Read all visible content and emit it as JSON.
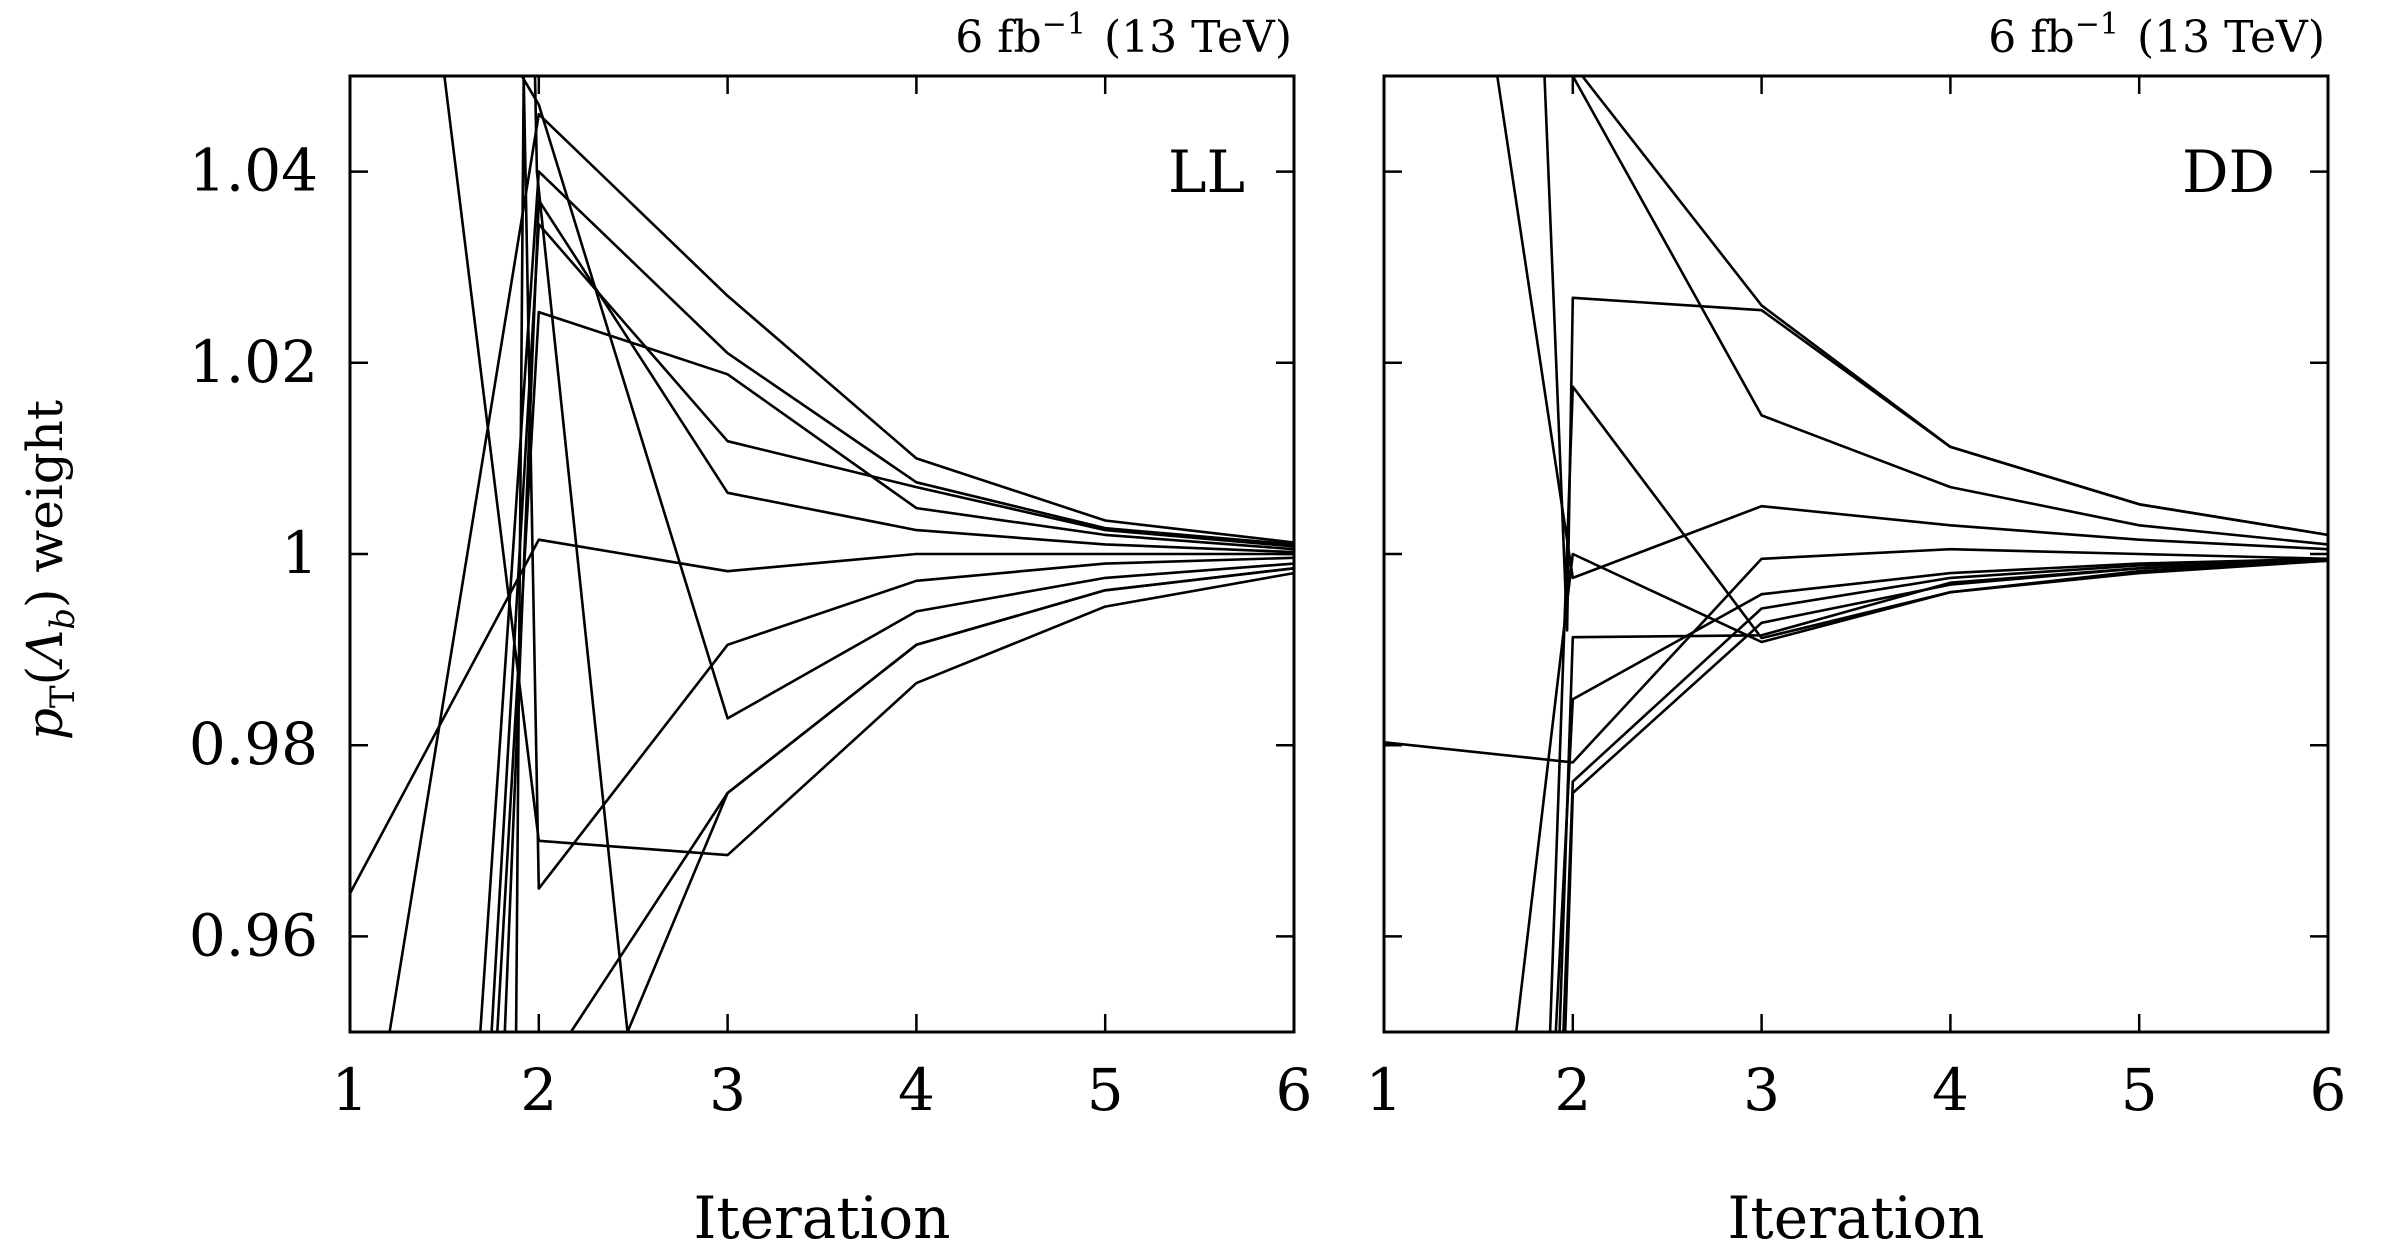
{
  "figure": {
    "ylabel_main": "p",
    "ylabel_sub": "T",
    "ylabel_rest_open": "(",
    "ylabel_symbol": "Λ",
    "ylabel_symbol_sub": "b",
    "ylabel_rest_close": ") weight"
  },
  "chart_data": [
    {
      "type": "line",
      "panel": "LL",
      "label": "LL",
      "lumi_base": "6 fb",
      "lumi_exp": "−1",
      "lumi_energy": "(13 TeV)",
      "xlabel": "Iteration",
      "ylabel": "pT(Λb) weight",
      "xlim": [
        1,
        6
      ],
      "ylim": [
        0.95,
        1.05
      ],
      "xticks": [
        1,
        2,
        3,
        4,
        5,
        6
      ],
      "yticks": [
        0.96,
        0.98,
        1.0,
        1.02,
        1.04
      ],
      "ytick_labels": [
        "0.96",
        "0.98",
        "1",
        "1.02",
        "1.04"
      ],
      "grid": false,
      "series": [
        {
          "x": [
            1,
            2,
            3,
            4,
            5,
            6
          ],
          "y": [
            0.9645,
            1.0015,
            0.9982,
            1.0,
            1.0,
            1.0
          ]
        },
        {
          "x": [
            1.5,
            2,
            3,
            4,
            5,
            6
          ],
          "y": [
            1.05,
            0.97,
            0.9685,
            0.9865,
            0.9945,
            0.998
          ]
        },
        {
          "x": [
            1.21,
            2,
            3,
            4,
            5,
            6
          ],
          "y": [
            0.95,
            1.046,
            1.027,
            1.01,
            1.0035,
            1.0012
          ]
        },
        {
          "x": [
            1.69,
            2,
            3,
            4,
            5,
            6
          ],
          "y": [
            0.95,
            1.04,
            1.021,
            1.0075,
            1.0027,
            1.001
          ]
        },
        {
          "x": [
            1.75,
            2,
            3,
            4,
            5,
            6
          ],
          "y": [
            0.95,
            1.0345,
            1.0118,
            1.007,
            1.0025,
            1.0008
          ]
        },
        {
          "x": [
            1.78,
            2,
            3,
            4,
            5,
            6
          ],
          "y": [
            0.95,
            1.0253,
            1.0188,
            1.0048,
            1.002,
            1.0005
          ]
        },
        {
          "x": [
            1.82,
            2,
            3,
            4,
            5,
            6
          ],
          "y": [
            0.95,
            1.037,
            1.0064,
            1.0025,
            1.001,
            1.0002
          ]
        },
        {
          "x": [
            1.88,
            1.92,
            2,
            3,
            4,
            5,
            6
          ],
          "y": [
            0.95,
            1.05,
            0.965,
            0.9905,
            0.9972,
            0.999,
            0.9996
          ]
        },
        {
          "x": [
            1.91,
            2,
            3,
            4,
            5,
            6
          ],
          "y": [
            1.05,
            1.047,
            0.9828,
            0.994,
            0.9975,
            0.999
          ]
        },
        {
          "x": [
            2.17,
            3,
            4,
            5,
            6
          ],
          "y": [
            0.95,
            0.975,
            0.9905,
            0.9962,
            0.9985
          ]
        },
        {
          "x": [
            1.98,
            1.99,
            2.47,
            3,
            4,
            5,
            6
          ],
          "y": [
            1.05,
            1.04,
            0.95,
            0.975,
            0.9905,
            0.9962,
            0.9985
          ]
        }
      ]
    },
    {
      "type": "line",
      "panel": "DD",
      "label": "DD",
      "lumi_base": "6 fb",
      "lumi_exp": "−1",
      "lumi_energy": "(13 TeV)",
      "xlabel": "Iteration",
      "ylabel": "pT(Λb) weight",
      "xlim": [
        1,
        6
      ],
      "ylim": [
        0.95,
        1.05
      ],
      "xticks": [
        1,
        2,
        3,
        4,
        5,
        6
      ],
      "yticks": [
        0.96,
        0.98,
        1.0,
        1.02,
        1.04
      ],
      "ytick_labels": [
        "0.96",
        "0.98",
        "1",
        "1.02",
        "1.04"
      ],
      "grid": false,
      "series": [
        {
          "x": [
            1,
            2,
            3,
            4,
            5,
            6
          ],
          "y": [
            0.9803,
            0.9782,
            0.9995,
            1.0005,
            1.0,
            0.9995
          ]
        },
        {
          "x": [
            1.6,
            2,
            3,
            4,
            5,
            6
          ],
          "y": [
            1.05,
            0.9975,
            1.005,
            1.003,
            1.0015,
            1.0005
          ]
        },
        {
          "x": [
            1.7,
            2,
            3,
            4,
            5,
            6
          ],
          "y": [
            0.95,
            1.0,
            0.9908,
            0.996,
            0.9982,
            0.9993
          ]
        },
        {
          "x": [
            1.85,
            1.97,
            2,
            3,
            4,
            5,
            6
          ],
          "y": [
            1.05,
            0.992,
            1.0268,
            1.0255,
            1.0112,
            1.0052,
            1.002
          ]
        },
        {
          "x": [
            1.88,
            2,
            3,
            4,
            5,
            6
          ],
          "y": [
            0.95,
            1.0175,
            0.9912,
            0.996,
            0.998,
            0.9993
          ]
        },
        {
          "x": [
            1.91,
            2,
            3,
            4,
            5,
            6
          ],
          "y": [
            0.95,
            0.9848,
            0.9958,
            0.998,
            0.999,
            0.9995
          ]
        },
        {
          "x": [
            1.93,
            2,
            3,
            4,
            5,
            6
          ],
          "y": [
            0.95,
            0.9913,
            0.9915,
            0.997,
            0.9985,
            0.9995
          ]
        },
        {
          "x": [
            1.95,
            2,
            3,
            4,
            5,
            6
          ],
          "y": [
            0.95,
            0.9762,
            0.9943,
            0.9975,
            0.9988,
            0.9995
          ]
        },
        {
          "x": [
            1.96,
            2,
            3,
            4,
            5,
            6
          ],
          "y": [
            0.95,
            0.975,
            0.9928,
            0.9968,
            0.9985,
            0.9993
          ]
        },
        {
          "x": [
            1.97,
            2,
            3,
            4,
            5,
            6
          ],
          "y": [
            1.05,
            1.05,
            1.0145,
            1.007,
            1.003,
            1.001
          ]
        },
        {
          "x": [
            2.05,
            3,
            4,
            5,
            6
          ],
          "y": [
            1.05,
            1.026,
            1.0112,
            1.0052,
            1.002
          ]
        }
      ]
    }
  ]
}
